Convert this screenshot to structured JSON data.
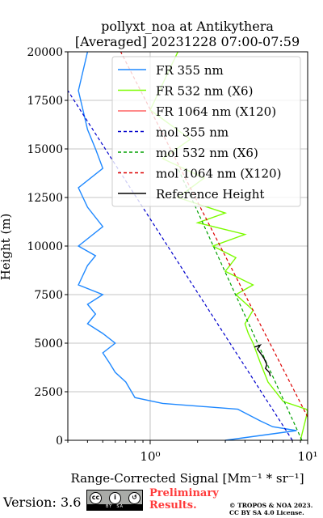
{
  "chart_data": {
    "type": "line",
    "title": "pollyxt_noa at Antikythera",
    "subtitle": "[Averaged] 20231228 07:00-07:59",
    "xlabel": "Range-Corrected Signal [Mm⁻¹ * sr⁻¹]",
    "ylabel": "Height (m)",
    "xscale": "log",
    "xlim": [
      0.3,
      10
    ],
    "ylim": [
      0,
      20000
    ],
    "xticks": [
      "10⁰",
      "10¹"
    ],
    "yticks": [
      "0",
      "2500",
      "5000",
      "7500",
      "10000",
      "12500",
      "15000",
      "17500",
      "20000"
    ],
    "grid": true,
    "legend_position": "top-right",
    "series": [
      {
        "name": "FR 355 nm",
        "color": "#1e88ff",
        "style": "solid",
        "x": [
          3.0,
          8.5,
          6.0,
          5.0,
          3.6,
          1.2,
          0.8,
          0.7,
          0.6,
          0.55,
          0.5,
          0.6,
          0.5,
          0.4,
          0.45,
          0.4,
          0.5,
          0.35,
          0.4,
          0.45,
          0.35,
          0.5,
          0.4,
          0.35,
          0.5,
          0.45,
          0.4,
          0.35,
          0.4
        ],
        "y": [
          0,
          500,
          700,
          1000,
          1600,
          1900,
          2200,
          3000,
          3500,
          4000,
          4500,
          5000,
          5500,
          6000,
          6500,
          7000,
          7500,
          8000,
          9000,
          9500,
          10000,
          11000,
          12000,
          13000,
          14000,
          15000,
          16000,
          18000,
          20000
        ]
      },
      {
        "name": "FR 532 nm (X6)",
        "color": "#7cfc00",
        "style": "solid",
        "x": [
          9.0,
          10.0,
          9.8,
          7.0,
          5.6,
          5.0,
          4.5,
          4.2,
          4.0,
          4.5,
          3.5,
          4.5,
          3.0,
          3.5,
          2.5,
          4.0,
          2.0,
          3.0,
          1.5,
          2.2,
          1.2,
          1.8,
          1.0,
          1.5
        ],
        "y": [
          0,
          1500,
          1600,
          2000,
          3000,
          4000,
          5000,
          5500,
          6000,
          6700,
          7500,
          8000,
          8700,
          9400,
          10000,
          10600,
          11200,
          11700,
          12500,
          13500,
          14500,
          15500,
          17000,
          20000
        ]
      },
      {
        "name": "FR 1064 nm (X120)",
        "color": "#ff6464",
        "style": "solid",
        "x": [],
        "y": []
      },
      {
        "name": "mol 355 nm",
        "color": "#0000cc",
        "style": "dashed",
        "x": [
          8.0,
          0.3
        ],
        "y": [
          0,
          18000
        ]
      },
      {
        "name": "mol 532 nm (X6)",
        "color": "#00a000",
        "style": "dashed",
        "x": [
          9.2,
          1.5
        ],
        "y": [
          0,
          14000
        ]
      },
      {
        "name": "mol 1064 nm (X120)",
        "color": "#dd0000",
        "style": "dashed",
        "x": [
          10.0,
          0.65
        ],
        "y": [
          1200,
          20000
        ]
      },
      {
        "name": "Reference Height",
        "color": "#000000",
        "style": "solid",
        "x": [
          4.6,
          5.0,
          4.8,
          5.1,
          5.3,
          5.5,
          5.4,
          5.7,
          5.8
        ],
        "y": [
          4800,
          4900,
          4700,
          4400,
          4200,
          3900,
          3700,
          3500,
          3300
        ]
      }
    ]
  },
  "footer": {
    "version": "Version: 3.6",
    "cc_badge": {
      "icons": [
        "cc-icon",
        "by-icon",
        "sa-icon"
      ],
      "labels": [
        "BY",
        "SA"
      ]
    },
    "preliminary_line1": "Preliminary",
    "preliminary_line2": "Results.",
    "copyright_line1": "© TROPOS & NOA 2023.",
    "copyright_line2": "CC BY SA 4.0 License."
  }
}
